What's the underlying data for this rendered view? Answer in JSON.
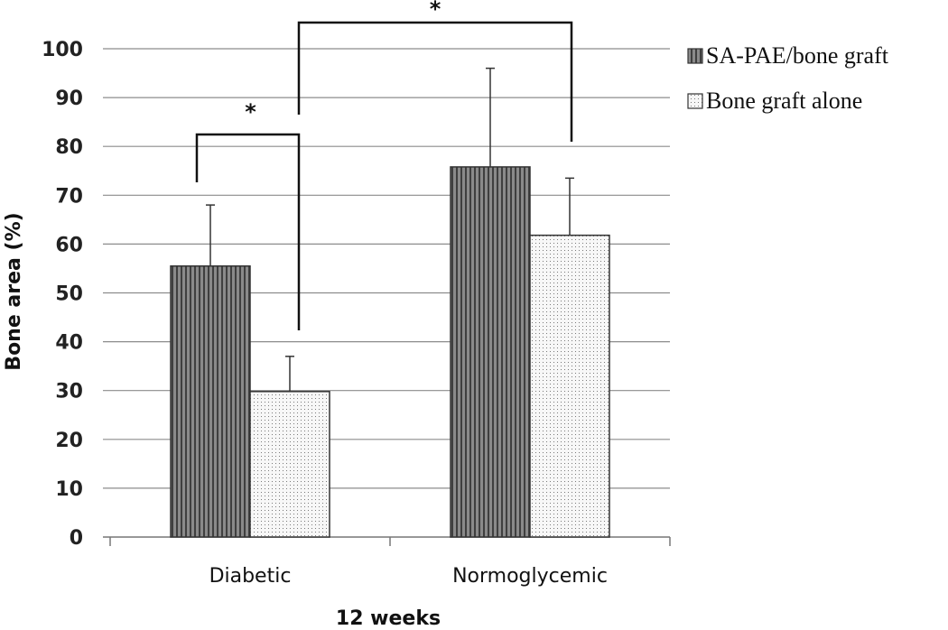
{
  "chart_data": {
    "type": "bar",
    "title": "",
    "xlabel": "12 weeks",
    "ylabel": "Bone area (%)",
    "ylim": [
      0,
      100
    ],
    "yticks": [
      0,
      10,
      20,
      30,
      40,
      50,
      60,
      70,
      80,
      90,
      100
    ],
    "categories": [
      "Diabetic",
      "Normoglycemic"
    ],
    "series": [
      {
        "name": "SA-PAE/bone graft",
        "values": [
          55.5,
          75.8
        ],
        "error_upper": [
          68,
          96
        ],
        "pattern": "vertical-stripes",
        "color": "#6e6e6e"
      },
      {
        "name": "Bone graft alone",
        "values": [
          29.8,
          61.8
        ],
        "error_upper": [
          37,
          73.5
        ],
        "pattern": "dots",
        "color": "#f4f4f4"
      }
    ],
    "grid": true,
    "legend_position": "top-right",
    "annotations": [
      {
        "label": "*",
        "type": "significance-bracket",
        "compares": "Diabetic: SA-PAE/bone graft vs Bone graft alone"
      },
      {
        "label": "*",
        "type": "significance-bracket",
        "compares": "Diabetic Bone graft alone vs Normoglycemic SA-PAE/bone graft"
      }
    ]
  }
}
